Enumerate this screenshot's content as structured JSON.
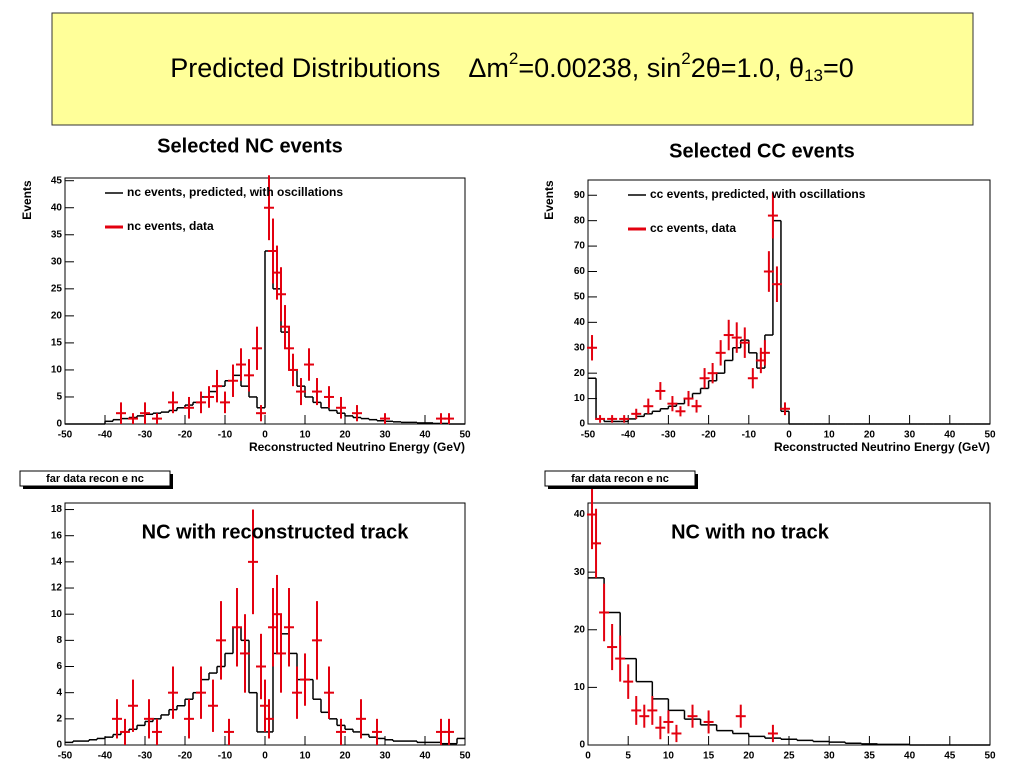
{
  "header": {
    "title_parts": [
      "Predicted Distributions",
      "Δm",
      "2",
      "=0.00238, sin",
      "2",
      "2θ=1.0, θ",
      "13",
      "=0"
    ]
  },
  "chart_data": [
    {
      "type": "histogram",
      "title": "Selected NC events",
      "ylabel": "Events",
      "xlabel": "Reconstructed Neutrino Energy (GeV)",
      "legend": "upper left",
      "xlim": [
        -50,
        50
      ],
      "ylim": [
        0,
        45.5
      ],
      "xticks": [
        -50,
        -40,
        -30,
        -20,
        -10,
        0,
        10,
        20,
        30,
        40,
        50
      ],
      "yticks": [
        0,
        5,
        10,
        15,
        20,
        25,
        30,
        35,
        40,
        45
      ],
      "bins": [
        -50,
        -48,
        -46,
        -44,
        -42,
        -40,
        -38,
        -36,
        -34,
        -32,
        -30,
        -28,
        -26,
        -24,
        -22,
        -20,
        -18,
        -16,
        -14,
        -12,
        -10,
        -8,
        -6,
        -4,
        -2,
        0,
        2,
        4,
        6,
        8,
        10,
        12,
        14,
        16,
        18,
        20,
        22,
        24,
        26,
        28,
        30,
        32,
        34,
        36,
        38,
        40,
        42,
        44,
        46,
        48,
        50
      ],
      "series": [
        {
          "name": "nc events, predicted, with oscillations",
          "color": "#000000",
          "values": [
            0,
            0,
            0,
            0,
            0,
            0.5,
            0.8,
            1,
            1.2,
            1.5,
            1.8,
            2,
            2.2,
            2.5,
            3,
            3.5,
            4,
            5,
            6,
            7,
            8,
            9,
            7,
            5,
            3,
            32,
            25,
            17,
            10,
            7,
            5,
            4,
            3,
            2.5,
            2,
            1.5,
            1.2,
            1,
            0.8,
            0.6,
            0.5,
            0.4,
            0.3,
            0.3,
            0.2,
            0.2,
            0.1,
            0.1,
            0,
            0
          ]
        },
        {
          "name": "nc events, data",
          "color": "#e3000f",
          "x": [
            -36,
            -33,
            -30,
            -27,
            -23,
            -19,
            -16,
            -14,
            -12,
            -10,
            -8,
            -6,
            -4,
            -2,
            -1,
            1,
            2,
            3,
            4,
            5,
            6,
            7,
            9,
            11,
            13,
            16,
            19,
            23,
            30,
            44,
            46
          ],
          "values": [
            2,
            1,
            2,
            1,
            4,
            3,
            4,
            5,
            7,
            4,
            8,
            11,
            9,
            14,
            2,
            40,
            32,
            28,
            24,
            18,
            14,
            10,
            6,
            11,
            6,
            5,
            3,
            2,
            1,
            1,
            1
          ],
          "errors": [
            2,
            1,
            2,
            1,
            2,
            2,
            2,
            2,
            3,
            2,
            3,
            3,
            3,
            4,
            1.5,
            6,
            6,
            5,
            5,
            4,
            4,
            3,
            2.5,
            3,
            2.5,
            2,
            2,
            1.5,
            1,
            1,
            1
          ]
        }
      ]
    },
    {
      "type": "histogram",
      "title": "Selected CC events",
      "ylabel": "Events",
      "xlabel": "Reconstructed Neutrino Energy (GeV)",
      "legend": "upper left",
      "xlim": [
        -50,
        50
      ],
      "ylim": [
        0,
        96
      ],
      "xticks": [
        -50,
        -40,
        -30,
        -20,
        -10,
        0,
        10,
        20,
        30,
        40,
        50
      ],
      "yticks": [
        0,
        10,
        20,
        30,
        40,
        50,
        60,
        70,
        80,
        90
      ],
      "bins": [
        -50,
        -48,
        -46,
        -44,
        -42,
        -40,
        -38,
        -36,
        -34,
        -32,
        -30,
        -28,
        -26,
        -24,
        -22,
        -20,
        -18,
        -16,
        -14,
        -12,
        -10,
        -8,
        -6,
        -4,
        -2,
        0,
        2,
        4,
        6,
        8,
        10,
        12,
        14,
        16,
        18,
        20,
        22,
        24,
        26,
        28,
        30,
        32,
        34,
        36,
        38,
        40,
        42,
        44,
        46,
        48,
        50
      ],
      "series": [
        {
          "name": "cc events, predicted, with oscillations",
          "color": "#000000",
          "values": [
            18,
            2,
            1,
            1,
            1,
            2,
            3,
            4,
            5,
            6,
            7,
            8,
            10,
            12,
            14,
            17,
            20,
            25,
            30,
            33,
            28,
            22,
            35,
            80,
            5,
            0,
            0,
            0,
            0,
            0,
            0,
            0,
            0,
            0,
            0,
            0,
            0,
            0,
            0,
            0,
            0,
            0,
            0,
            0,
            0,
            0,
            0,
            0,
            0,
            0
          ]
        },
        {
          "name": "cc events, data",
          "color": "#e3000f",
          "x": [
            -49,
            -47,
            -44,
            -41,
            -38,
            -35,
            -32,
            -29,
            -27,
            -25,
            -23,
            -21,
            -19,
            -17,
            -15,
            -13,
            -11,
            -9,
            -7,
            -6,
            -5,
            -4,
            -3,
            -1
          ],
          "values": [
            30,
            2,
            2,
            2,
            4,
            7,
            13,
            8,
            5,
            10,
            7,
            18,
            20,
            28,
            35,
            34,
            32,
            18,
            25,
            28,
            60,
            82,
            55,
            6
          ],
          "errors": [
            5,
            1.5,
            1.5,
            1.5,
            2,
            3,
            3.5,
            3,
            2,
            3,
            2.5,
            4,
            4,
            5,
            6,
            6,
            6,
            4,
            5,
            5,
            8,
            9,
            7,
            2.5
          ]
        }
      ]
    },
    {
      "type": "histogram",
      "title": "NC with reconstructed track",
      "stats_label": "far data recon e nc",
      "xlim": [
        -50,
        50
      ],
      "ylim": [
        0,
        18.5
      ],
      "xticks": [
        -50,
        -40,
        -30,
        -20,
        -10,
        0,
        10,
        20,
        30,
        40,
        50
      ],
      "yticks": [
        0,
        2,
        4,
        6,
        8,
        10,
        12,
        14,
        16,
        18
      ],
      "bins": [
        -50,
        -48,
        -46,
        -44,
        -42,
        -40,
        -38,
        -36,
        -34,
        -32,
        -30,
        -28,
        -26,
        -24,
        -22,
        -20,
        -18,
        -16,
        -14,
        -12,
        -10,
        -8,
        -6,
        -4,
        -2,
        0,
        2,
        4,
        6,
        8,
        10,
        12,
        14,
        16,
        18,
        20,
        22,
        24,
        26,
        28,
        30,
        32,
        34,
        36,
        38,
        40,
        42,
        44,
        46,
        48,
        50
      ],
      "series": [
        {
          "color": "#000000",
          "values": [
            0.2,
            0.3,
            0.3,
            0.4,
            0.5,
            0.6,
            0.8,
            1,
            1.2,
            1.5,
            1.8,
            2,
            2.3,
            2.7,
            3,
            3.5,
            4,
            5,
            5.5,
            6,
            7,
            9,
            8,
            4,
            1,
            1,
            7,
            8.5,
            7,
            5,
            5,
            3.5,
            2.5,
            2,
            1.5,
            1.2,
            1,
            0.8,
            0.6,
            0.5,
            0.4,
            0.3,
            0.3,
            0.3,
            0.2,
            0.2,
            0.2,
            0.1,
            0.1,
            0.5
          ]
        },
        {
          "color": "#e3000f",
          "x": [
            -37,
            -35,
            -33,
            -29,
            -27,
            -23,
            -19,
            -16,
            -13,
            -11,
            -9,
            -7,
            -5,
            -3,
            -1,
            0,
            1,
            2,
            3,
            4,
            6,
            8,
            10,
            13,
            16,
            19,
            24,
            28,
            44,
            46
          ],
          "values": [
            2,
            1,
            3,
            2,
            1,
            4,
            2,
            4,
            3,
            8,
            1,
            9,
            7,
            14,
            6,
            3,
            2,
            9,
            10,
            7,
            9,
            4,
            5,
            8,
            4,
            1,
            2,
            1,
            1,
            1
          ],
          "errors": [
            1.5,
            1,
            2,
            1.5,
            1,
            2,
            1.5,
            2,
            2,
            3,
            1,
            3,
            3,
            4,
            2.5,
            2,
            1.5,
            3,
            3,
            3,
            3,
            2,
            2,
            3,
            2,
            1,
            1.5,
            1,
            1,
            1
          ]
        }
      ]
    },
    {
      "type": "histogram",
      "title": "NC with no track",
      "stats_label": "far data recon e nc",
      "xlim": [
        0,
        50
      ],
      "ylim": [
        0,
        42
      ],
      "xticks": [
        0,
        5,
        10,
        15,
        20,
        25,
        30,
        35,
        40,
        45,
        50
      ],
      "yticks": [
        0,
        10,
        20,
        30,
        40
      ],
      "bins": [
        0,
        2,
        4,
        6,
        8,
        10,
        12,
        14,
        16,
        18,
        20,
        22,
        24,
        26,
        28,
        30,
        32,
        34,
        36,
        38,
        40,
        42,
        44,
        46,
        48,
        50
      ],
      "series": [
        {
          "color": "#000000",
          "values": [
            29,
            23,
            15,
            11,
            8,
            6,
            4.5,
            3.5,
            2.5,
            2,
            1.5,
            1.2,
            1,
            0.8,
            0.6,
            0.5,
            0.3,
            0.2,
            0.1,
            0.1,
            0,
            0,
            0,
            0,
            0
          ]
        },
        {
          "color": "#e3000f",
          "x": [
            0.5,
            1,
            2,
            3,
            4,
            5,
            6,
            7,
            8,
            9,
            10,
            11,
            13,
            15,
            19,
            23
          ],
          "values": [
            40,
            35,
            23,
            17,
            15,
            11,
            6,
            5,
            6,
            3,
            4,
            2,
            5,
            4,
            5,
            2
          ],
          "errors": [
            6,
            6,
            5,
            4,
            4,
            3,
            2.5,
            2,
            2.5,
            2,
            2,
            1.5,
            2,
            2,
            2,
            1.5
          ]
        }
      ]
    }
  ]
}
